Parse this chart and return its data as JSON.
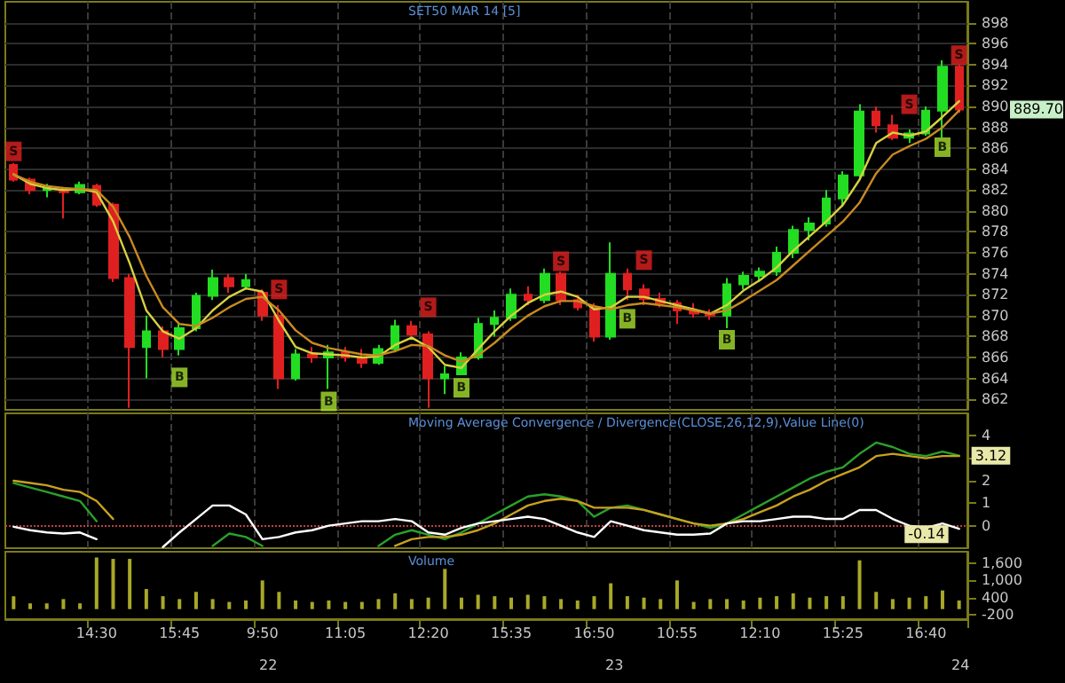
{
  "chart_data": [
    {
      "type": "candlestick",
      "title": "SET50 MAR 14 [5]",
      "tick_labels": "y",
      "grid": true,
      "categories": [
        null,
        null,
        null,
        null,
        null,
        null,
        null,
        null,
        null,
        null,
        null,
        null,
        null,
        null,
        null,
        null,
        null,
        null,
        null,
        null,
        null,
        null,
        null,
        null,
        null,
        null,
        null,
        null,
        null,
        null,
        null,
        null,
        null,
        null,
        null,
        null,
        null,
        null,
        null,
        null,
        null,
        null,
        null,
        null,
        null,
        null,
        null,
        null,
        null,
        null,
        null,
        null,
        null,
        null,
        null,
        null,
        null,
        null
      ],
      "ohlc": [
        [
          884.4,
          884.6,
          882.8,
          883.0
        ],
        [
          883.0,
          883.2,
          881.6,
          882.0
        ],
        [
          882.0,
          882.6,
          881.3,
          882.2
        ],
        [
          882.0,
          882.3,
          879.3,
          881.8
        ],
        [
          881.8,
          882.8,
          881.6,
          882.5
        ],
        [
          882.4,
          882.6,
          880.4,
          880.6
        ],
        [
          880.6,
          880.8,
          873.2,
          873.6
        ],
        [
          873.6,
          874.0,
          861.2,
          867.0
        ],
        [
          867.0,
          870.0,
          864.0,
          868.5
        ],
        [
          868.5,
          869.0,
          866.0,
          866.8
        ],
        [
          866.8,
          869.2,
          866.2,
          868.8
        ],
        [
          868.8,
          872.2,
          868.5,
          871.9
        ],
        [
          871.9,
          874.4,
          871.5,
          873.6
        ],
        [
          873.6,
          874.0,
          872.2,
          872.8
        ],
        [
          872.8,
          874.0,
          872.5,
          873.4
        ],
        [
          872.2,
          872.5,
          869.5,
          870.0
        ],
        [
          870.0,
          871.0,
          863.0,
          864.0
        ],
        [
          864.0,
          866.8,
          863.8,
          866.3
        ],
        [
          866.3,
          867.0,
          865.5,
          866.0
        ],
        [
          866.0,
          867.2,
          863.0,
          866.5
        ],
        [
          866.5,
          867.0,
          865.6,
          866.0
        ],
        [
          866.0,
          866.8,
          865.0,
          865.5
        ],
        [
          865.5,
          867.2,
          865.3,
          866.8
        ],
        [
          866.8,
          869.6,
          866.5,
          869.0
        ],
        [
          869.0,
          869.5,
          867.8,
          868.2
        ],
        [
          868.2,
          868.5,
          861.2,
          864.0
        ],
        [
          864.0,
          865.2,
          862.5,
          864.4
        ],
        [
          864.4,
          866.5,
          864.3,
          866.0
        ],
        [
          866.0,
          869.8,
          865.8,
          869.2
        ],
        [
          869.2,
          870.5,
          868.0,
          869.8
        ],
        [
          869.8,
          872.6,
          869.5,
          872.0
        ],
        [
          872.0,
          872.8,
          871.0,
          871.5
        ],
        [
          871.5,
          874.5,
          871.2,
          874.0
        ],
        [
          874.0,
          874.2,
          871.0,
          871.5
        ],
        [
          871.5,
          872.0,
          870.5,
          870.8
        ],
        [
          870.8,
          871.2,
          867.5,
          868.0
        ],
        [
          868.0,
          877.0,
          867.7,
          874.0
        ],
        [
          874.0,
          874.5,
          871.5,
          872.5
        ],
        [
          872.5,
          873.0,
          871.0,
          871.6
        ],
        [
          871.6,
          872.2,
          870.8,
          871.2
        ],
        [
          871.2,
          871.5,
          869.2,
          870.5
        ],
        [
          870.5,
          871.2,
          869.8,
          870.2
        ],
        [
          870.2,
          870.6,
          869.6,
          870.0
        ],
        [
          870.0,
          873.6,
          868.8,
          873.0
        ],
        [
          873.0,
          874.2,
          872.5,
          873.8
        ],
        [
          873.8,
          874.6,
          873.2,
          874.2
        ],
        [
          874.2,
          876.6,
          873.8,
          876.0
        ],
        [
          876.0,
          878.6,
          875.5,
          878.2
        ],
        [
          878.2,
          879.4,
          877.2,
          878.8
        ],
        [
          878.8,
          882.0,
          878.5,
          881.2
        ],
        [
          881.2,
          883.8,
          880.4,
          883.4
        ],
        [
          883.4,
          890.2,
          883.0,
          889.5
        ],
        [
          889.5,
          890.0,
          887.5,
          888.2
        ],
        [
          888.2,
          889.2,
          886.8,
          887.0
        ],
        [
          887.0,
          887.8,
          886.5,
          887.4
        ],
        [
          887.4,
          890.0,
          887.2,
          889.6
        ],
        [
          889.6,
          894.4,
          887.0,
          893.8
        ],
        [
          893.8,
          894.0,
          889.4,
          889.7
        ]
      ],
      "ylim": [
        861,
        900
      ],
      "yticks": [
        862,
        864,
        866,
        868,
        870,
        872,
        874,
        876,
        878,
        880,
        882,
        884,
        886,
        888,
        890,
        892,
        894,
        896,
        898
      ],
      "series": [
        {
          "type": "line",
          "color": "#d8d040",
          "values": [
            883.5,
            882.6,
            882.2,
            882.0,
            882.1,
            881.8,
            879.0,
            875.0,
            870.5,
            868.5,
            867.8,
            868.8,
            870.5,
            871.8,
            872.6,
            872.3,
            869.5,
            867.0,
            866.4,
            866.3,
            866.2,
            866.0,
            866.1,
            867.2,
            867.9,
            867.0,
            865.3,
            865.0,
            866.8,
            868.5,
            870.0,
            871.2,
            872.0,
            872.3,
            871.8,
            870.6,
            870.8,
            871.8,
            871.8,
            871.4,
            871.0,
            870.6,
            870.2,
            871.0,
            872.4,
            873.4,
            874.6,
            876.2,
            877.6,
            879.0,
            880.6,
            883.0,
            886.5,
            887.5,
            887.2,
            887.6,
            889.0,
            890.5
          ]
        },
        {
          "type": "line",
          "color": "#c88a20",
          "values": [
            883.5,
            882.8,
            882.4,
            882.2,
            882.1,
            882.0,
            880.4,
            877.5,
            873.8,
            870.8,
            869.2,
            869.0,
            869.8,
            870.8,
            871.6,
            871.8,
            870.5,
            868.6,
            867.4,
            866.9,
            866.6,
            866.3,
            866.2,
            866.6,
            867.2,
            867.1,
            866.2,
            865.6,
            866.2,
            867.4,
            868.8,
            870.0,
            870.9,
            871.4,
            871.4,
            870.9,
            870.6,
            871.0,
            871.2,
            871.0,
            870.8,
            870.5,
            870.2,
            870.5,
            871.4,
            872.4,
            873.4,
            874.8,
            876.2,
            877.6,
            879.0,
            880.8,
            883.6,
            885.4,
            886.2,
            886.9,
            888.0,
            889.6
          ]
        },
        {
          "type": "scatter",
          "marker": "square",
          "values": [
            885.7,
            null,
            null,
            null,
            null,
            null,
            null,
            null,
            null,
            null,
            864.1,
            null,
            null,
            null,
            null,
            null,
            872.5,
            null,
            null,
            861.8,
            null,
            null,
            null,
            null,
            null,
            870.8,
            null,
            863.1,
            null,
            null,
            null,
            null,
            null,
            875.2,
            null,
            null,
            null,
            869.7,
            875.3,
            null,
            null,
            null,
            null,
            867.7,
            null,
            null,
            null,
            null,
            null,
            null,
            null,
            null,
            null,
            null,
            890.2,
            null,
            886.1,
            894.9
          ],
          "value_labels": [
            "S",
            null,
            null,
            null,
            null,
            null,
            null,
            null,
            null,
            null,
            "B",
            null,
            null,
            null,
            null,
            null,
            "S",
            null,
            null,
            "B",
            null,
            null,
            null,
            null,
            null,
            "S",
            null,
            "B",
            null,
            null,
            null,
            null,
            null,
            "S",
            null,
            null,
            null,
            "B",
            "S",
            null,
            null,
            null,
            null,
            "B",
            null,
            null,
            null,
            null,
            null,
            null,
            null,
            null,
            null,
            null,
            "S",
            null,
            "B",
            "S"
          ],
          "colors": [
            "#e02020",
            null,
            null,
            null,
            null,
            null,
            null,
            null,
            null,
            null,
            "#a8e030",
            null,
            null,
            null,
            null,
            null,
            "#e02020",
            null,
            null,
            "#a8e030",
            null,
            null,
            null,
            null,
            null,
            "#e02020",
            null,
            "#a8e030",
            null,
            null,
            null,
            null,
            null,
            "#e02020",
            null,
            null,
            null,
            "#a8e030",
            "#e02020",
            null,
            null,
            null,
            null,
            "#a8e030",
            null,
            null,
            null,
            null,
            null,
            null,
            null,
            null,
            null,
            null,
            "#e02020",
            null,
            "#a8e030",
            "#e02020"
          ]
        }
      ],
      "annotations": [
        "889.70"
      ]
    },
    {
      "type": "line",
      "title": "Moving Average Convergence / Divergence(CLOSE,26,12,9),Value Line(0)",
      "tick_labels": "y",
      "grid": "x",
      "categories": [
        null,
        null,
        null,
        null,
        null,
        null,
        null,
        null,
        null,
        null,
        null,
        null,
        null,
        null,
        null,
        null,
        null,
        null,
        null,
        null,
        null,
        null,
        null,
        null,
        null,
        null,
        null,
        null,
        null,
        null,
        null,
        null,
        null,
        null,
        null,
        null,
        null,
        null,
        null,
        null,
        null,
        null,
        null,
        null,
        null,
        null,
        null,
        null,
        null,
        null,
        null,
        null,
        null,
        null,
        null,
        null,
        null,
        null
      ],
      "ylim": [
        -1,
        5
      ],
      "yticks": [
        0,
        1,
        2,
        {
          "value": 3,
          "label": null
        },
        4
      ],
      "series": [
        {
          "color": "#2aa02a",
          "value_labels": [
            null,
            null,
            null,
            null,
            null,
            null,
            null,
            null,
            null,
            null,
            null,
            null,
            null,
            null,
            null,
            null,
            null,
            null,
            null,
            null,
            null,
            null,
            null,
            null,
            null,
            null,
            null,
            null,
            null,
            null,
            null,
            null,
            null,
            null,
            null,
            null,
            null,
            null,
            null,
            null,
            null,
            null,
            null,
            null,
            null,
            null,
            null,
            null,
            null,
            null,
            null,
            null,
            null,
            null,
            null,
            null,
            null,
            "3.12"
          ],
          "values": [
            1.9,
            1.7,
            1.5,
            1.3,
            1.1,
            0.2,
            null,
            null,
            null,
            null,
            null,
            null,
            -0.9,
            -0.35,
            -0.5,
            -0.9,
            null,
            null,
            null,
            null,
            null,
            null,
            -0.9,
            -0.4,
            -0.2,
            -0.4,
            -0.6,
            -0.3,
            0.1,
            0.5,
            0.9,
            1.3,
            1.4,
            1.3,
            1.1,
            0.4,
            0.8,
            0.9,
            0.7,
            0.5,
            0.3,
            0.1,
            -0.1,
            0.1,
            0.5,
            0.9,
            1.3,
            1.7,
            2.1,
            2.4,
            2.6,
            3.2,
            3.7,
            3.5,
            3.2,
            3.1,
            3.3,
            3.12
          ]
        },
        {
          "color": "#c8a020",
          "values": [
            2.0,
            1.9,
            1.8,
            1.6,
            1.5,
            1.1,
            0.3,
            null,
            null,
            null,
            null,
            null,
            null,
            null,
            null,
            null,
            null,
            null,
            null,
            null,
            null,
            null,
            null,
            -0.9,
            -0.6,
            -0.5,
            -0.5,
            -0.4,
            -0.2,
            0.1,
            0.5,
            0.9,
            1.1,
            1.2,
            1.1,
            0.8,
            0.8,
            0.8,
            0.7,
            0.5,
            0.3,
            0.1,
            0.0,
            0.1,
            0.3,
            0.6,
            0.9,
            1.3,
            1.6,
            2.0,
            2.3,
            2.6,
            3.1,
            3.2,
            3.1,
            3.0,
            3.1,
            3.1
          ]
        },
        {
          "color": "#ffffff",
          "value_labels": [
            null,
            null,
            null,
            null,
            null,
            null,
            null,
            null,
            null,
            null,
            null,
            null,
            null,
            null,
            null,
            null,
            null,
            null,
            null,
            null,
            null,
            null,
            null,
            null,
            null,
            null,
            null,
            null,
            null,
            null,
            null,
            null,
            null,
            null,
            null,
            null,
            null,
            null,
            null,
            null,
            null,
            null,
            null,
            null,
            null,
            null,
            null,
            null,
            null,
            null,
            null,
            null,
            null,
            null,
            null,
            null,
            null,
            "-0.14"
          ],
          "values": [
            -0.05,
            -0.2,
            -0.3,
            -0.35,
            -0.3,
            -0.6,
            null,
            null,
            null,
            -0.95,
            -0.3,
            0.3,
            0.9,
            0.9,
            0.5,
            -0.6,
            -0.5,
            -0.3,
            -0.2,
            0.0,
            0.1,
            0.2,
            0.2,
            0.3,
            0.2,
            -0.3,
            -0.4,
            -0.1,
            0.1,
            0.2,
            0.3,
            0.4,
            0.3,
            0.0,
            -0.3,
            -0.5,
            0.2,
            0.0,
            -0.2,
            -0.3,
            -0.4,
            -0.4,
            -0.35,
            0.1,
            0.2,
            0.2,
            0.3,
            0.4,
            0.4,
            0.3,
            0.3,
            0.7,
            0.7,
            0.3,
            0.0,
            -0.1,
            0.1,
            -0.14
          ]
        }
      ],
      "ref_lines": [
        {
          "axis": "y",
          "value": 0,
          "color": "#c04040",
          "line_style": "dotted"
        }
      ]
    },
    {
      "type": "bar",
      "title": "Volume",
      "categories": [
        null,
        null,
        null,
        null,
        null,
        "14:30",
        null,
        null,
        null,
        null,
        "15:45",
        null,
        null,
        null,
        null,
        "9:50",
        null,
        null,
        null,
        null,
        "11:05",
        null,
        null,
        null,
        null,
        "12:20",
        null,
        null,
        null,
        null,
        "15:35",
        null,
        null,
        null,
        null,
        "16:50",
        null,
        null,
        null,
        null,
        "10:55",
        null,
        null,
        null,
        null,
        "12:10",
        null,
        null,
        null,
        null,
        "15:25",
        null,
        null,
        null,
        null,
        "16:40",
        null,
        null
      ],
      "color": "#a8a828",
      "values": [
        450,
        200,
        200,
        350,
        200,
        1800,
        1750,
        1750,
        700,
        450,
        350,
        600,
        350,
        250,
        300,
        1000,
        600,
        300,
        250,
        300,
        250,
        250,
        350,
        550,
        350,
        400,
        1400,
        400,
        500,
        450,
        400,
        500,
        450,
        350,
        300,
        450,
        900,
        450,
        400,
        350,
        1000,
        250,
        350,
        350,
        300,
        400,
        450,
        550,
        400,
        450,
        450,
        1700,
        600,
        350,
        400,
        450,
        650,
        300
      ],
      "ylim": [
        -350,
        2000
      ],
      "yticks": [
        -200,
        400,
        {
          "value": 1000,
          "label": "1,000"
        },
        {
          "value": 1600,
          "label": "1,600"
        }
      ],
      "annotations": [
        "22",
        "23",
        "24"
      ]
    }
  ]
}
